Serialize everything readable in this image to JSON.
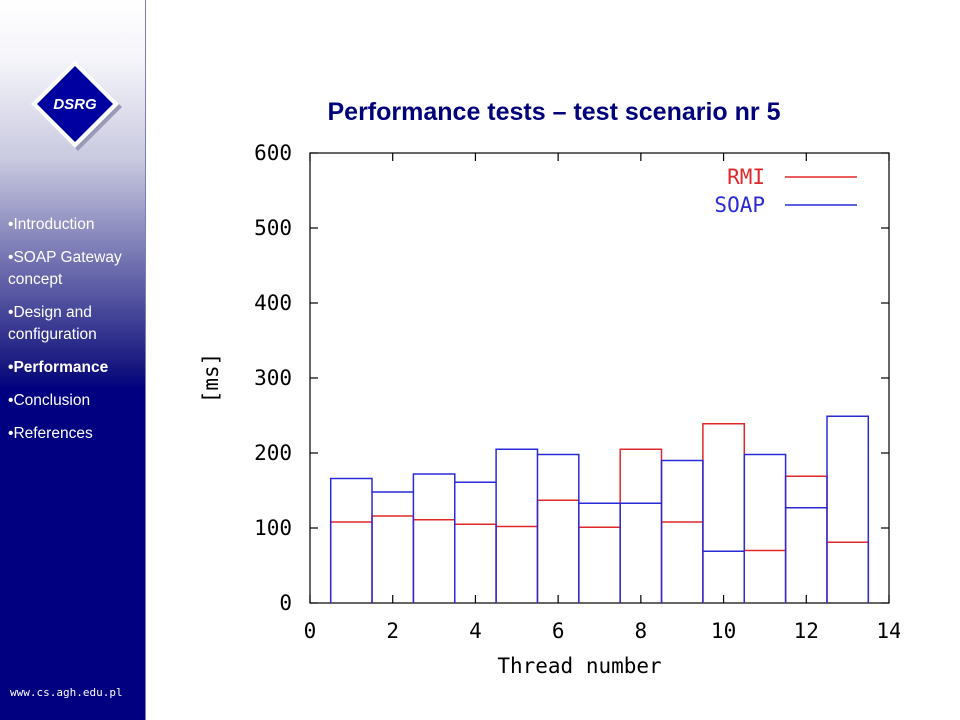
{
  "sidebar": {
    "logo_text": "DSRG",
    "nav": [
      {
        "label": "Introduction",
        "active": false
      },
      {
        "label": "SOAP Gateway concept",
        "active": false
      },
      {
        "label": "Design and configuration",
        "active": false
      },
      {
        "label": "Performance",
        "active": true
      },
      {
        "label": "Conclusion",
        "active": false
      },
      {
        "label": "References",
        "active": false
      }
    ],
    "footer": "www.cs.agh.edu.pl"
  },
  "slide": {
    "title": "Performance tests – test scenario nr 5"
  },
  "colors": {
    "sidebar_blue": "#000080",
    "title_blue": "#00007a",
    "rmi": "#e0282a",
    "soap": "#2a2ad8",
    "axis": "#000000"
  },
  "chart_data": {
    "type": "line",
    "step": "histeps",
    "title": "",
    "xlabel": "Thread number",
    "ylabel": "[ms]",
    "xlim": [
      0,
      14
    ],
    "ylim": [
      0,
      600
    ],
    "xticks": [
      "0",
      "2",
      "4",
      "6",
      "8",
      "10",
      "12",
      "14"
    ],
    "yticks": [
      "0",
      "100",
      "200",
      "300",
      "400",
      "500",
      "600"
    ],
    "legend_position": "top-right",
    "x": [
      1,
      2,
      3,
      4,
      5,
      6,
      7,
      8,
      9,
      10,
      11,
      12,
      13
    ],
    "series": [
      {
        "name": "RMI",
        "color": "#e0282a",
        "values": [
          108,
          116,
          111,
          105,
          102,
          137,
          101,
          205,
          108,
          239,
          70,
          169,
          81
        ]
      },
      {
        "name": "SOAP",
        "color": "#2a2ad8",
        "values": [
          166,
          148,
          172,
          161,
          205,
          198,
          133,
          133,
          190,
          69,
          198,
          127,
          249
        ]
      }
    ]
  }
}
